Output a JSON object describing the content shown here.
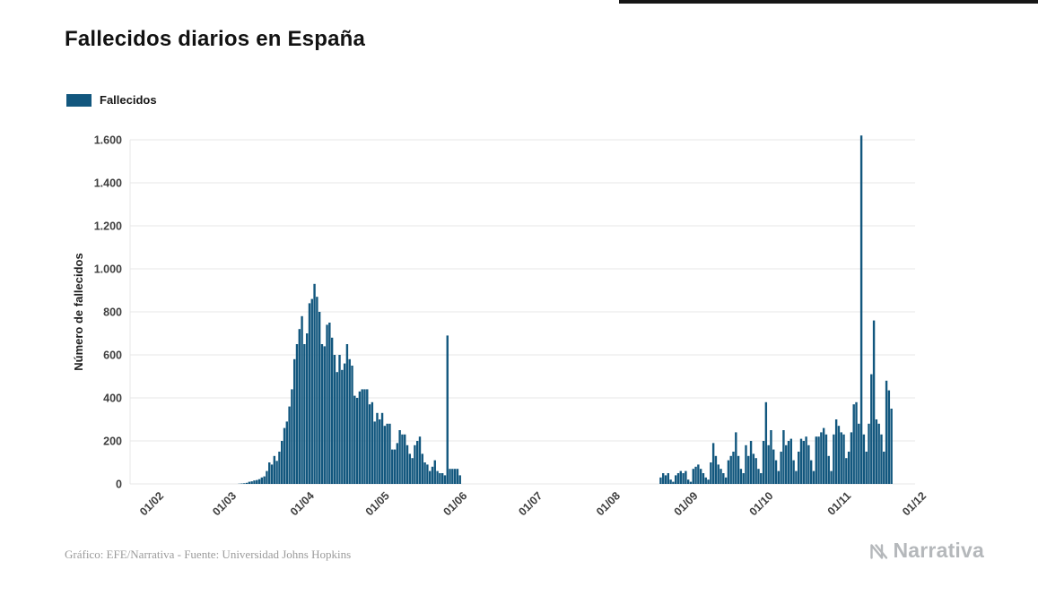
{
  "page": {
    "title": "Fallecidos diarios en España"
  },
  "legend": {
    "label": "Fallecidos"
  },
  "footer": {
    "credit": "Gráfico: EFE/Narrativa - Fuente: Universidad Johns Hopkins",
    "brand": "Narrativa"
  },
  "chart_data": {
    "type": "bar",
    "title": "Fallecidos diarios en España",
    "series_name": "Fallecidos",
    "xlabel": "",
    "ylabel": "Número de fallecidos",
    "legend_position": "top-left",
    "grid": "horizontal",
    "bar_color": "#12577e",
    "grid_color": "#e7e7e7",
    "tick_text_color": "#3e3e3e",
    "ylim": [
      0,
      1650
    ],
    "y_ticks": [
      0,
      200,
      400,
      600,
      800,
      1000,
      1200,
      1400,
      1600
    ],
    "y_tick_labels": [
      "0",
      "200",
      "400",
      "600",
      "800",
      "1.000",
      "1.200",
      "1.400",
      "1.600"
    ],
    "x_tick_labels": [
      "01/02",
      "01/03",
      "01/04",
      "01/05",
      "01/06",
      "01/07",
      "01/08",
      "01/09",
      "01/10",
      "01/11",
      "01/12"
    ],
    "start_date": "2020-02-01",
    "values": [
      0,
      0,
      0,
      0,
      0,
      0,
      0,
      0,
      0,
      0,
      0,
      0,
      0,
      0,
      0,
      0,
      0,
      0,
      0,
      0,
      0,
      0,
      0,
      0,
      0,
      0,
      0,
      0,
      0,
      0,
      0,
      1,
      2,
      3,
      5,
      10,
      12,
      16,
      18,
      22,
      30,
      35,
      60,
      100,
      90,
      130,
      107,
      150,
      200,
      260,
      290,
      360,
      440,
      580,
      650,
      720,
      780,
      650,
      700,
      840,
      860,
      930,
      870,
      800,
      650,
      640,
      740,
      750,
      680,
      600,
      520,
      600,
      530,
      560,
      650,
      580,
      550,
      410,
      400,
      430,
      440,
      440,
      440,
      370,
      380,
      290,
      330,
      300,
      330,
      270,
      280,
      280,
      160,
      160,
      190,
      250,
      230,
      230,
      180,
      140,
      120,
      180,
      200,
      220,
      140,
      100,
      90,
      60,
      80,
      110,
      60,
      50,
      50,
      40,
      690,
      70,
      70,
      70,
      70,
      40,
      0,
      0,
      0,
      0,
      0,
      0,
      0,
      0,
      0,
      0,
      0,
      0,
      0,
      0,
      0,
      0,
      0,
      0,
      0,
      0,
      0,
      0,
      0,
      0,
      0,
      0,
      0,
      0,
      0,
      0,
      0,
      0,
      0,
      0,
      0,
      0,
      0,
      0,
      0,
      0,
      0,
      0,
      0,
      0,
      0,
      0,
      0,
      0,
      0,
      0,
      0,
      0,
      0,
      0,
      0,
      0,
      0,
      0,
      0,
      0,
      0,
      0,
      0,
      0,
      0,
      0,
      0,
      0,
      0,
      0,
      0,
      0,
      0,
      0,
      0,
      0,
      0,
      0,
      0,
      30,
      50,
      40,
      50,
      20,
      10,
      40,
      50,
      60,
      50,
      60,
      20,
      10,
      70,
      80,
      90,
      70,
      50,
      30,
      20,
      100,
      190,
      130,
      90,
      70,
      50,
      30,
      110,
      130,
      150,
      240,
      130,
      70,
      50,
      180,
      130,
      200,
      140,
      120,
      70,
      50,
      200,
      380,
      180,
      250,
      160,
      110,
      60,
      150,
      250,
      180,
      200,
      210,
      110,
      60,
      150,
      210,
      200,
      220,
      180,
      110,
      60,
      220,
      220,
      240,
      260,
      230,
      130,
      60,
      230,
      300,
      270,
      240,
      230,
      120,
      150,
      240,
      370,
      380,
      280,
      1620,
      230,
      150,
      280,
      510,
      760,
      300,
      280,
      230,
      150,
      480,
      435,
      350
    ]
  }
}
